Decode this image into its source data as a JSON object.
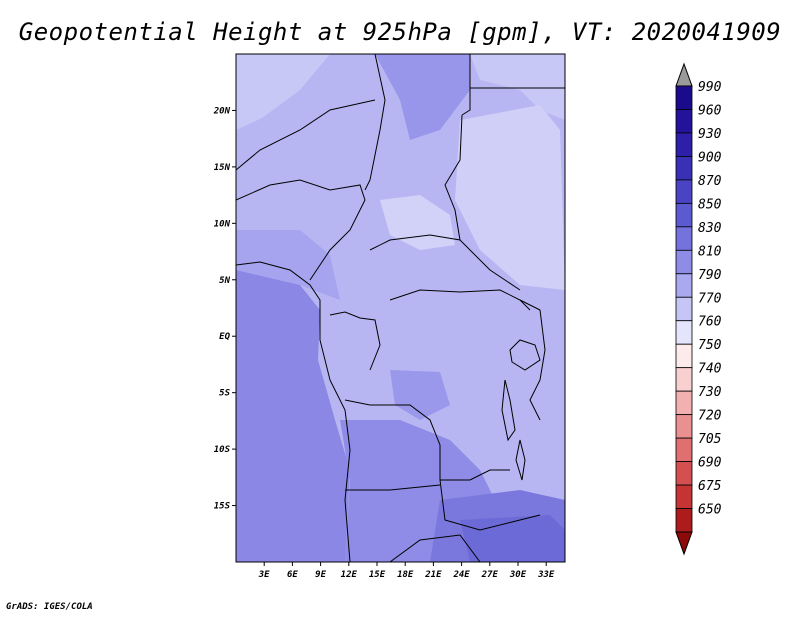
{
  "title": "Geopotential Height at 925hPa [gpm], VT: 2020041909",
  "footer": "GrADS: IGES/COLA",
  "map": {
    "lon_range": [
      0,
      35
    ],
    "lat_range": [
      -20,
      25
    ],
    "lat_ticks": [
      {
        "value": 20,
        "label": "20N"
      },
      {
        "value": 15,
        "label": "15N"
      },
      {
        "value": 10,
        "label": "10N"
      },
      {
        "value": 5,
        "label": "5N"
      },
      {
        "value": 0,
        "label": "EQ"
      },
      {
        "value": -5,
        "label": "5S"
      },
      {
        "value": -10,
        "label": "10S"
      },
      {
        "value": -15,
        "label": "15S"
      }
    ],
    "lon_ticks": [
      {
        "value": 3,
        "label": "3E"
      },
      {
        "value": 6,
        "label": "6E"
      },
      {
        "value": 9,
        "label": "9E"
      },
      {
        "value": 12,
        "label": "12E"
      },
      {
        "value": 15,
        "label": "15E"
      },
      {
        "value": 18,
        "label": "18E"
      },
      {
        "value": 21,
        "label": "21E"
      },
      {
        "value": 24,
        "label": "24E"
      },
      {
        "value": 27,
        "label": "27E"
      },
      {
        "value": 30,
        "label": "30E"
      },
      {
        "value": 33,
        "label": "33E"
      }
    ]
  },
  "colorbar": {
    "levels": [
      {
        "label": "990",
        "color": "#1a0a8c"
      },
      {
        "label": "960",
        "color": "#24129a"
      },
      {
        "label": "930",
        "color": "#2e1fa8"
      },
      {
        "label": "900",
        "color": "#3a30b6"
      },
      {
        "label": "870",
        "color": "#4a44c4"
      },
      {
        "label": "850",
        "color": "#5c5ad0"
      },
      {
        "label": "830",
        "color": "#7472dc"
      },
      {
        "label": "810",
        "color": "#8e8ce6"
      },
      {
        "label": "790",
        "color": "#aaa8ee"
      },
      {
        "label": "770",
        "color": "#c6c6f6"
      },
      {
        "label": "760",
        "color": "#e4e4fc"
      },
      {
        "label": "750",
        "color": "#fdebeb"
      },
      {
        "label": "740",
        "color": "#f9d0d0"
      },
      {
        "label": "730",
        "color": "#f2b0b0"
      },
      {
        "label": "720",
        "color": "#ea9090"
      },
      {
        "label": "705",
        "color": "#e07070"
      },
      {
        "label": "690",
        "color": "#d45050"
      },
      {
        "label": "675",
        "color": "#c43434"
      },
      {
        "label": "650",
        "color": "#ac1c1c"
      }
    ],
    "top_arrow_color": "#9a9a9a",
    "bottom_arrow_color": "#8c0a0a"
  }
}
